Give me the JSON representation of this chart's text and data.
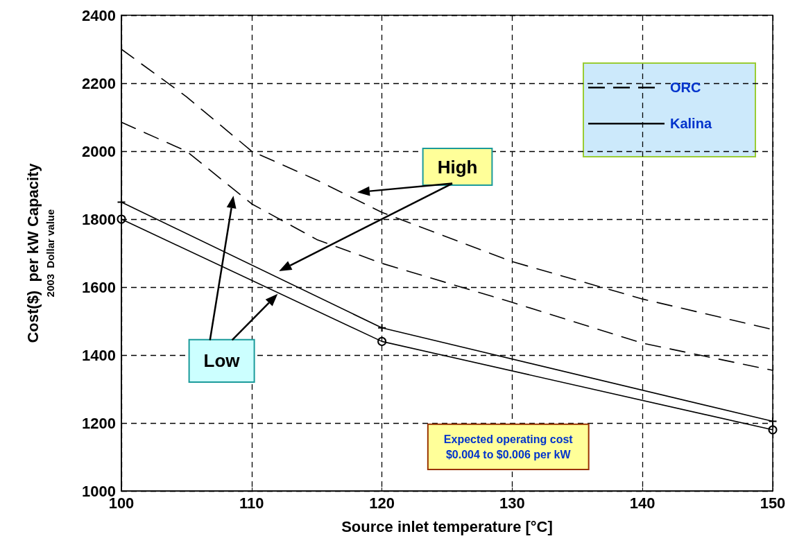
{
  "chart_data": {
    "type": "line",
    "xlabel": "Source inlet temperature [°C]",
    "ylabel": "Cost($)  per kW Capacity\n2003  Dollar value",
    "xlim": [
      100,
      150
    ],
    "xticks": [
      100,
      110,
      120,
      130,
      140,
      150
    ],
    "ylim": [
      1000,
      2400
    ],
    "yticks": [
      1000,
      1200,
      1400,
      1600,
      1800,
      2000,
      2200,
      2400
    ],
    "grid": true,
    "legend": "top right",
    "series": [
      {
        "name": "ORC",
        "color": "#000000",
        "line_style": "dashed",
        "marker": "none",
        "x": [
          100,
          105,
          110,
          115,
          120,
          130,
          140,
          150
        ],
        "values": [
          2300,
          2160,
          2000,
          1915,
          1820,
          1675,
          1565,
          1475
        ]
      },
      {
        "color": "#000000",
        "line_style": "dashed",
        "marker": "none",
        "x": [
          100,
          105,
          110,
          115,
          120,
          130,
          140,
          150
        ],
        "values": [
          2085,
          2000,
          1845,
          1740,
          1670,
          1555,
          1435,
          1355
        ]
      },
      {
        "name": "Kalina",
        "color": "#000000",
        "line_style": "solid",
        "marker": "cross",
        "x": [
          100,
          120,
          150
        ],
        "values": [
          1850,
          1480,
          1205
        ]
      },
      {
        "color": "#000000",
        "line_style": "solid",
        "marker": "circle",
        "x": [
          100,
          120,
          150
        ],
        "values": [
          1800,
          1440,
          1180
        ]
      }
    ],
    "annotations": [
      "High",
      "Low",
      "Expected operating cost\n$0.004 to $0.006 per kW"
    ]
  }
}
